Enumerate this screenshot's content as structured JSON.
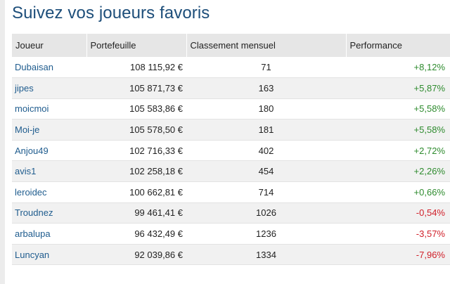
{
  "title": "Suivez vos joueurs favoris",
  "colors": {
    "title": "#1d4e7a",
    "player_link": "#1f5c8e",
    "positive": "#2e8b2e",
    "negative": "#d0202a",
    "header_bg": "#e6e6e6",
    "alt_row_bg": "#f1f1f1"
  },
  "table": {
    "headers": {
      "player": "Joueur",
      "portfolio": "Portefeuille",
      "rank": "Classement mensuel",
      "performance": "Performance"
    },
    "rows": [
      {
        "player": "Dubaisan",
        "portfolio": "108 115,92 €",
        "rank": "71",
        "performance": "+8,12%",
        "trend": "pos"
      },
      {
        "player": "jipes",
        "portfolio": "105 871,73 €",
        "rank": "163",
        "performance": "+5,87%",
        "trend": "pos"
      },
      {
        "player": "moicmoi",
        "portfolio": "105 583,86 €",
        "rank": "180",
        "performance": "+5,58%",
        "trend": "pos"
      },
      {
        "player": "Moi-je",
        "portfolio": "105 578,50 €",
        "rank": "181",
        "performance": "+5,58%",
        "trend": "pos"
      },
      {
        "player": "Anjou49",
        "portfolio": "102 716,33 €",
        "rank": "402",
        "performance": "+2,72%",
        "trend": "pos"
      },
      {
        "player": "avis1",
        "portfolio": "102 258,18 €",
        "rank": "454",
        "performance": "+2,26%",
        "trend": "pos"
      },
      {
        "player": "leroidec",
        "portfolio": "100 662,81 €",
        "rank": "714",
        "performance": "+0,66%",
        "trend": "pos"
      },
      {
        "player": "Troudnez",
        "portfolio": "99 461,41 €",
        "rank": "1026",
        "performance": "-0,54%",
        "trend": "neg"
      },
      {
        "player": "arbalupa",
        "portfolio": "96 432,49 €",
        "rank": "1236",
        "performance": "-3,57%",
        "trend": "neg"
      },
      {
        "player": "Luncyan",
        "portfolio": "92 039,86 €",
        "rank": "1334",
        "performance": "-7,96%",
        "trend": "neg"
      }
    ]
  }
}
